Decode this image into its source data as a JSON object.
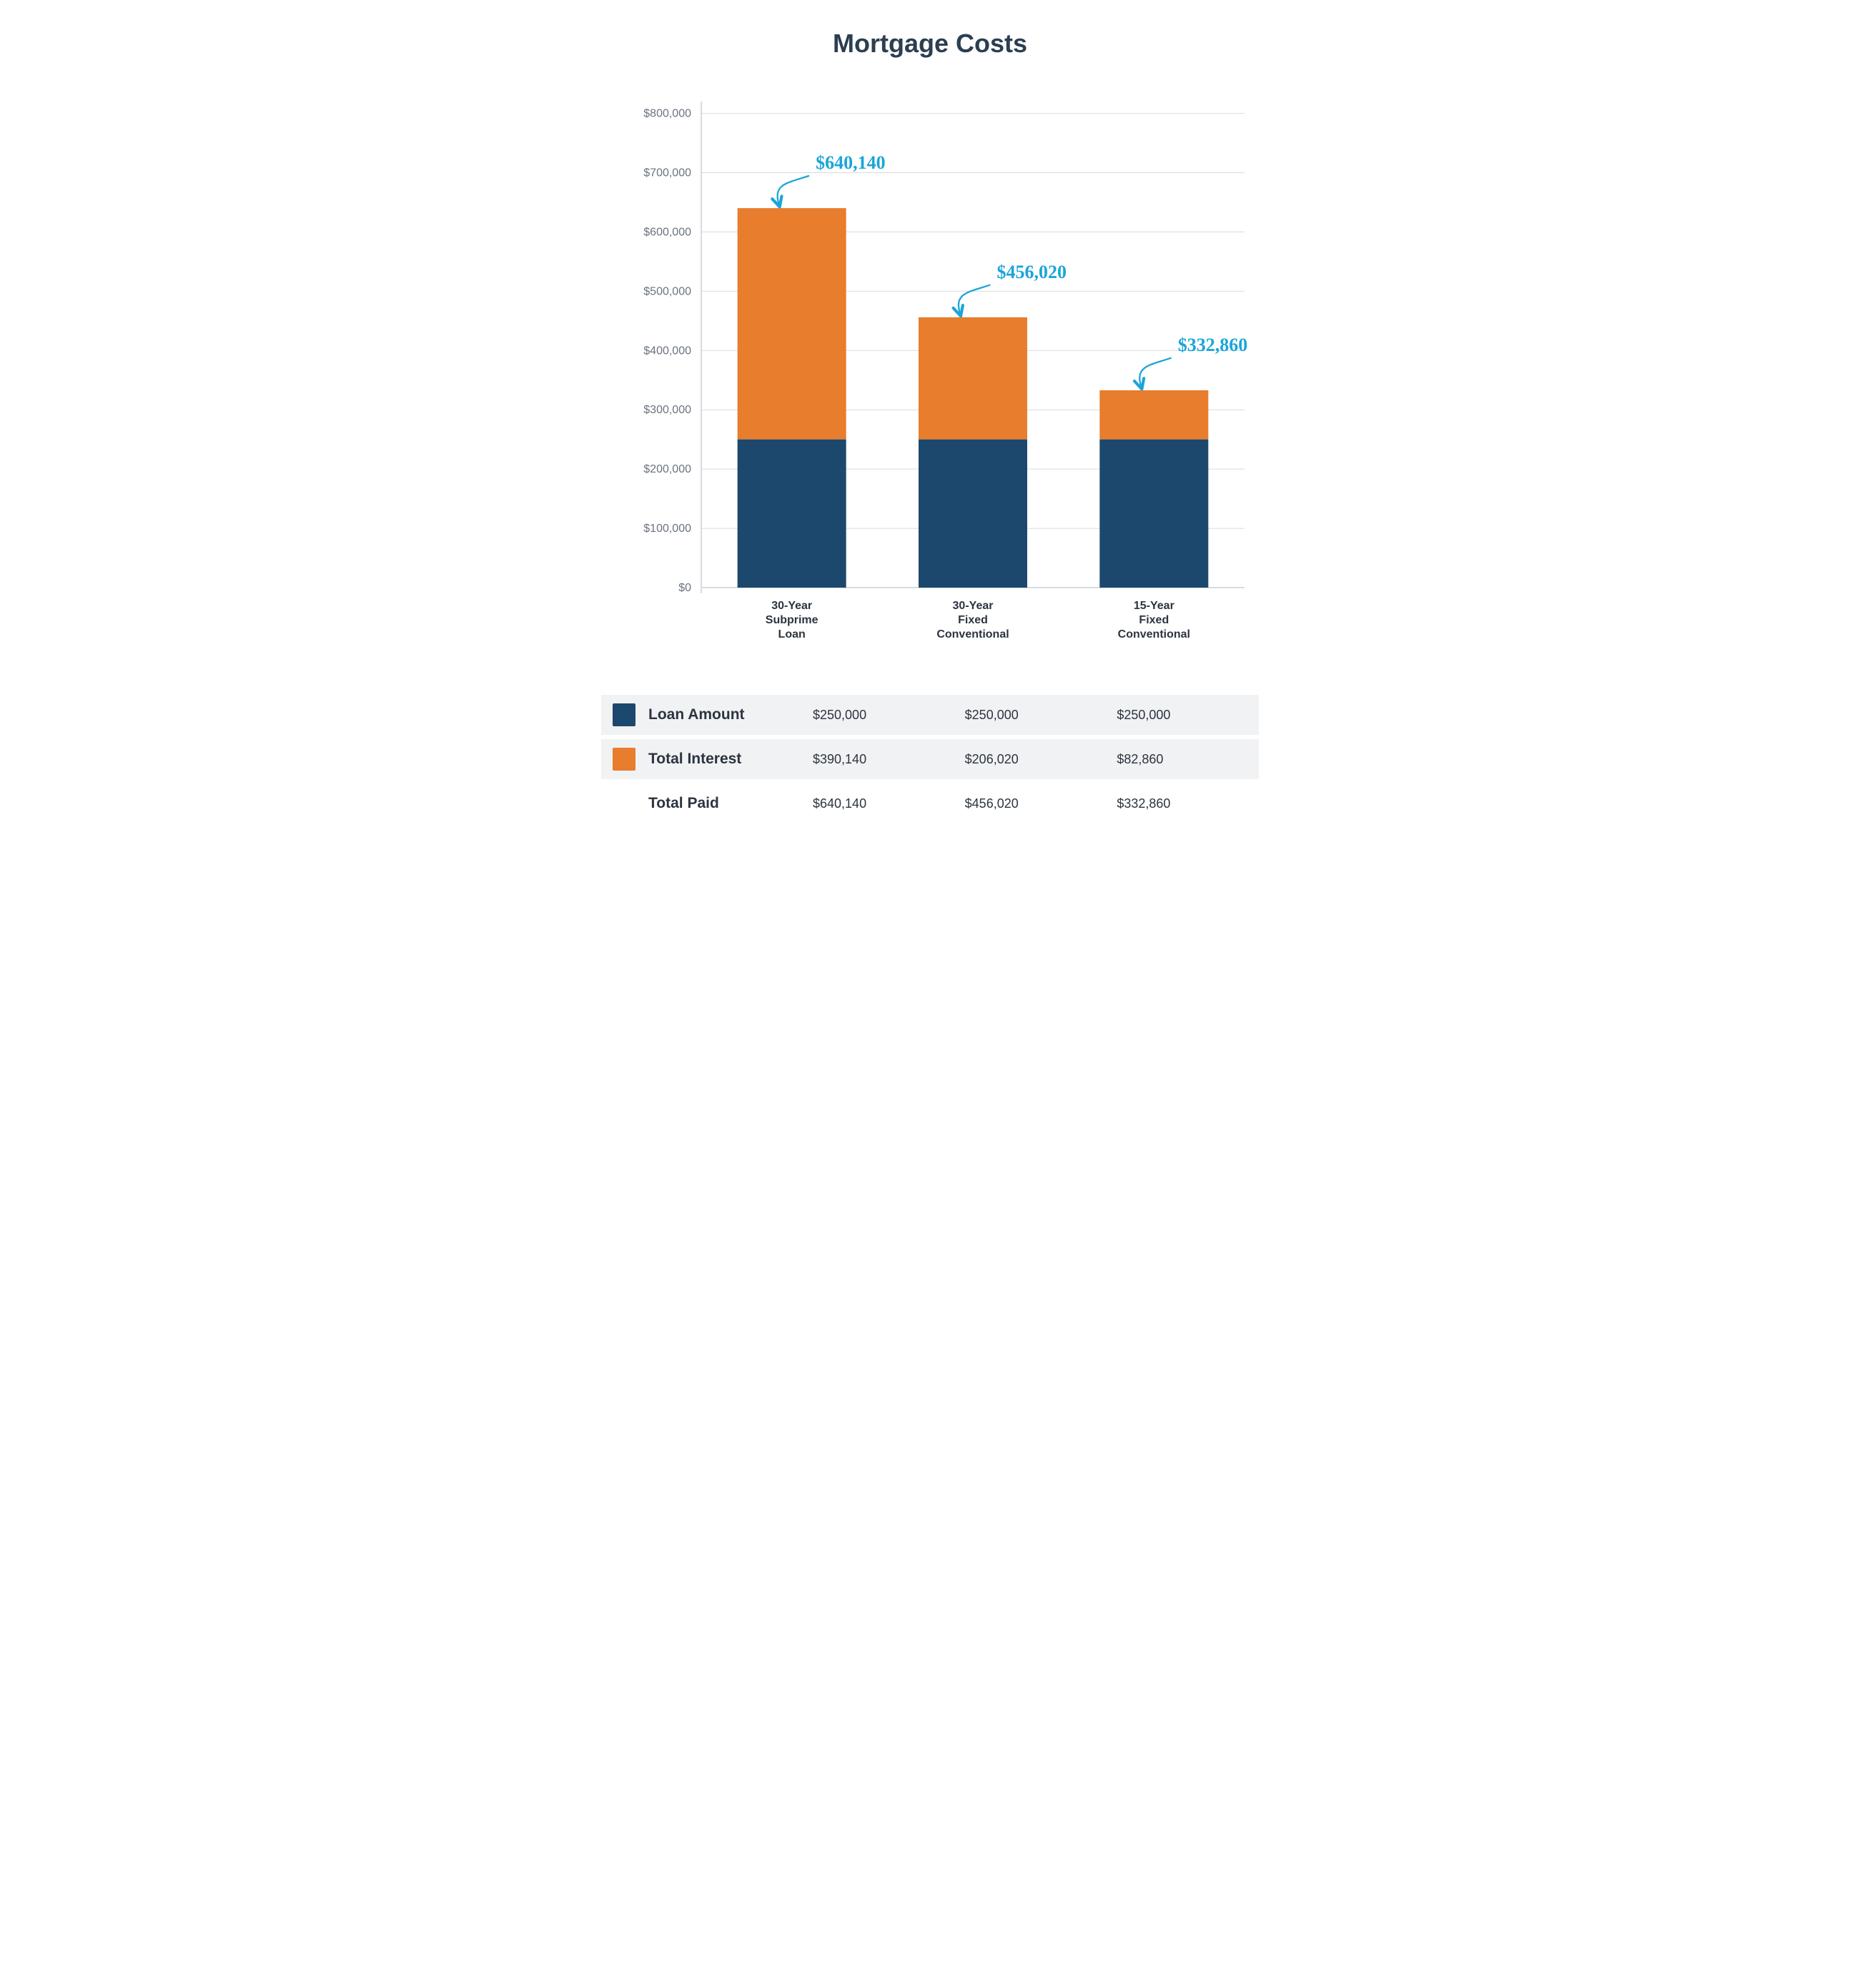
{
  "chart": {
    "title": "Mortgage Costs",
    "type": "stacked-bar",
    "ylim": [
      0,
      820000
    ],
    "ytick_step": 100000,
    "yticks": [
      "$0",
      "$100,000",
      "$200,000",
      "$300,000",
      "$400,000",
      "$500,000",
      "$600,000",
      "$700,000",
      "$800,000"
    ],
    "colors": {
      "loan": "#1c486d",
      "interest": "#e77d2d",
      "grid": "#d8dbdf",
      "axis_text": "#6b7380",
      "label_text": "#2c3440",
      "callout": "#1ca5d8",
      "background": "#ffffff"
    },
    "bar_width": 0.6,
    "categories": [
      {
        "key": "subprime",
        "lines": [
          "30-Year",
          "Subprime",
          "Loan"
        ],
        "loan": 250000,
        "interest": 390140,
        "total": 640140,
        "callout_label": "$640,140"
      },
      {
        "key": "fixed30",
        "lines": [
          "30-Year",
          "Fixed",
          "Conventional"
        ],
        "loan": 250000,
        "interest": 206020,
        "total": 456020,
        "callout_label": "$456,020"
      },
      {
        "key": "fixed15",
        "lines": [
          "15-Year",
          "Fixed",
          "Conventional"
        ],
        "loan": 250000,
        "interest": 82860,
        "total": 332860,
        "callout_label": "$332,860"
      }
    ]
  },
  "table": {
    "rows": [
      {
        "key": "loan",
        "label": "Loan Amount",
        "swatch": "#1c486d",
        "values": [
          "$250,000",
          "$250,000",
          "$250,000"
        ]
      },
      {
        "key": "interest",
        "label": "Total Interest",
        "swatch": "#e77d2d",
        "values": [
          "$390,140",
          "$206,020",
          "$82,860"
        ]
      },
      {
        "key": "total",
        "label": "Total Paid",
        "swatch": null,
        "values": [
          "$640,140",
          "$456,020",
          "$332,860"
        ]
      }
    ]
  },
  "typography": {
    "title_fontsize": 36,
    "axis_fontsize": 16,
    "xlabel_fontsize": 16,
    "callout_fontsize": 26,
    "table_label_fontsize": 21,
    "table_value_fontsize": 18
  }
}
